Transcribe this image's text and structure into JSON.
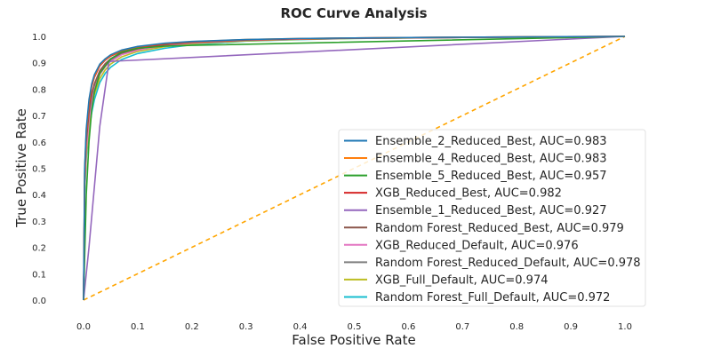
{
  "chart_data": {
    "type": "line",
    "title": "ROC Curve Analysis",
    "xlabel": "False Positive Rate",
    "ylabel": "True Positive Rate",
    "xlim": [
      0.0,
      1.0
    ],
    "ylim": [
      0.0,
      1.0
    ],
    "xticks": [
      "0.0",
      "0.1",
      "0.2",
      "0.3",
      "0.4",
      "0.5",
      "0.6",
      "0.7",
      "0.8",
      "0.9",
      "1.0"
    ],
    "yticks": [
      "0.0",
      "0.1",
      "0.2",
      "0.3",
      "0.4",
      "0.5",
      "0.6",
      "0.7",
      "0.8",
      "0.9",
      "1.0"
    ],
    "grid": false,
    "legend_position": "center-right",
    "series": [
      {
        "name": "Ensemble_2_Reduced_Best, AUC=0.983",
        "color": "#1f77b4",
        "x": [
          0.0,
          0.002,
          0.005,
          0.01,
          0.015,
          0.02,
          0.03,
          0.04,
          0.05,
          0.07,
          0.1,
          0.15,
          0.2,
          0.3,
          0.4,
          0.5,
          0.7,
          1.0
        ],
        "y": [
          0.0,
          0.5,
          0.65,
          0.76,
          0.82,
          0.855,
          0.895,
          0.915,
          0.93,
          0.948,
          0.962,
          0.974,
          0.981,
          0.988,
          0.992,
          0.994,
          0.997,
          1.0
        ]
      },
      {
        "name": "Ensemble_4_Reduced_Best, AUC=0.983",
        "color": "#ff7f0e",
        "x": [
          0.0,
          0.002,
          0.005,
          0.01,
          0.015,
          0.02,
          0.03,
          0.04,
          0.05,
          0.07,
          0.1,
          0.15,
          0.2,
          0.3,
          0.4,
          0.5,
          0.7,
          1.0
        ],
        "y": [
          0.0,
          0.49,
          0.64,
          0.75,
          0.815,
          0.85,
          0.892,
          0.913,
          0.928,
          0.947,
          0.961,
          0.973,
          0.98,
          0.988,
          0.992,
          0.994,
          0.997,
          1.0
        ]
      },
      {
        "name": "Ensemble_5_Reduced_Best, AUC=0.957",
        "color": "#2ca02c",
        "x": [
          0.0,
          0.005,
          0.01,
          0.015,
          0.02,
          0.03,
          0.05,
          0.07,
          0.1,
          0.15,
          0.2,
          1.0
        ],
        "y": [
          0.0,
          0.4,
          0.6,
          0.72,
          0.79,
          0.86,
          0.915,
          0.94,
          0.955,
          0.963,
          0.966,
          1.0
        ]
      },
      {
        "name": "XGB_Reduced_Best, AUC=0.982",
        "color": "#d62728",
        "x": [
          0.0,
          0.002,
          0.005,
          0.01,
          0.015,
          0.02,
          0.03,
          0.04,
          0.05,
          0.07,
          0.1,
          0.15,
          0.2,
          0.3,
          0.4,
          0.5,
          0.7,
          1.0
        ],
        "y": [
          0.0,
          0.48,
          0.63,
          0.74,
          0.81,
          0.845,
          0.888,
          0.91,
          0.925,
          0.944,
          0.958,
          0.971,
          0.979,
          0.987,
          0.991,
          0.994,
          0.997,
          1.0
        ]
      },
      {
        "name": "Ensemble_1_Reduced_Best, AUC=0.927",
        "color": "#9467bd",
        "x": [
          0.0,
          0.01,
          0.02,
          0.03,
          0.047,
          1.0
        ],
        "y": [
          0.0,
          0.2,
          0.43,
          0.66,
          0.905,
          1.0
        ]
      },
      {
        "name": "Random Forest_Reduced_Best, AUC=0.979",
        "color": "#8c564b",
        "x": [
          0.0,
          0.002,
          0.005,
          0.01,
          0.015,
          0.02,
          0.03,
          0.04,
          0.05,
          0.07,
          0.1,
          0.15,
          0.2,
          0.3,
          0.4,
          0.5,
          0.7,
          1.0
        ],
        "y": [
          0.0,
          0.45,
          0.6,
          0.71,
          0.78,
          0.82,
          0.87,
          0.897,
          0.915,
          0.937,
          0.953,
          0.968,
          0.977,
          0.986,
          0.991,
          0.993,
          0.996,
          1.0
        ]
      },
      {
        "name": "XGB_Reduced_Default, AUC=0.976",
        "color": "#e377c2",
        "x": [
          0.0,
          0.002,
          0.005,
          0.01,
          0.015,
          0.02,
          0.03,
          0.04,
          0.05,
          0.07,
          0.1,
          0.15,
          0.2,
          0.3,
          0.4,
          0.5,
          0.7,
          1.0
        ],
        "y": [
          0.0,
          0.43,
          0.57,
          0.68,
          0.75,
          0.8,
          0.855,
          0.885,
          0.905,
          0.93,
          0.948,
          0.965,
          0.975,
          0.985,
          0.99,
          0.993,
          0.996,
          1.0
        ]
      },
      {
        "name": "Random Forest_Reduced_Default, AUC=0.978",
        "color": "#7f7f7f",
        "x": [
          0.0,
          0.002,
          0.005,
          0.01,
          0.015,
          0.02,
          0.03,
          0.04,
          0.05,
          0.07,
          0.1,
          0.15,
          0.2,
          0.3,
          0.4,
          0.5,
          0.7,
          1.0
        ],
        "y": [
          0.0,
          0.44,
          0.59,
          0.7,
          0.77,
          0.81,
          0.862,
          0.89,
          0.91,
          0.934,
          0.951,
          0.967,
          0.976,
          0.986,
          0.99,
          0.993,
          0.996,
          1.0
        ]
      },
      {
        "name": "XGB_Full_Default, AUC=0.974",
        "color": "#bcbd22",
        "x": [
          0.0,
          0.002,
          0.005,
          0.01,
          0.015,
          0.02,
          0.03,
          0.04,
          0.05,
          0.07,
          0.1,
          0.15,
          0.2,
          0.3,
          0.4,
          0.5,
          0.7,
          1.0
        ],
        "y": [
          0.0,
          0.41,
          0.55,
          0.66,
          0.73,
          0.78,
          0.84,
          0.873,
          0.895,
          0.922,
          0.943,
          0.961,
          0.972,
          0.983,
          0.989,
          0.992,
          0.996,
          1.0
        ]
      },
      {
        "name": "Random Forest_Full_Default, AUC=0.972",
        "color": "#17becf",
        "x": [
          0.0,
          0.002,
          0.005,
          0.01,
          0.015,
          0.02,
          0.03,
          0.04,
          0.05,
          0.07,
          0.1,
          0.15,
          0.2,
          0.3,
          0.4,
          0.5,
          0.7,
          1.0
        ],
        "y": [
          0.0,
          0.4,
          0.54,
          0.64,
          0.71,
          0.76,
          0.825,
          0.86,
          0.883,
          0.912,
          0.935,
          0.955,
          0.968,
          0.982,
          0.988,
          0.992,
          0.996,
          1.0
        ]
      }
    ],
    "reference_line": {
      "color": "#ffa500",
      "style": "dashed",
      "x": [
        0.0,
        1.0
      ],
      "y": [
        0.0,
        1.0
      ]
    }
  }
}
